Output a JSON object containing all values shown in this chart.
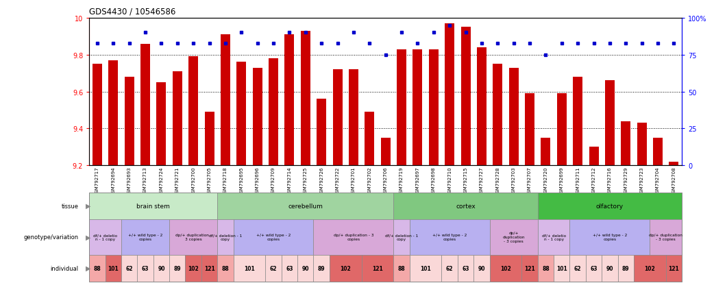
{
  "title": "GDS4430 / 10546586",
  "samples": [
    "GSM792717",
    "GSM792694",
    "GSM792693",
    "GSM792713",
    "GSM792724",
    "GSM792721",
    "GSM792700",
    "GSM792705",
    "GSM792718",
    "GSM792695",
    "GSM792696",
    "GSM792709",
    "GSM792714",
    "GSM792725",
    "GSM792726",
    "GSM792722",
    "GSM792701",
    "GSM792702",
    "GSM792706",
    "GSM792719",
    "GSM792697",
    "GSM792698",
    "GSM792710",
    "GSM792715",
    "GSM792727",
    "GSM792728",
    "GSM792703",
    "GSM792707",
    "GSM792720",
    "GSM792699",
    "GSM792711",
    "GSM792712",
    "GSM792716",
    "GSM792729",
    "GSM792723",
    "GSM792704",
    "GSM792708"
  ],
  "bar_values": [
    9.75,
    9.77,
    9.68,
    9.86,
    9.65,
    9.71,
    9.79,
    9.49,
    9.91,
    9.76,
    9.73,
    9.78,
    9.91,
    9.93,
    9.56,
    9.72,
    9.72,
    9.49,
    9.35,
    9.83,
    9.83,
    9.83,
    9.97,
    9.95,
    9.84,
    9.75,
    9.73,
    9.59,
    9.35,
    9.59,
    9.68,
    9.3,
    9.66,
    9.44,
    9.43,
    9.35,
    9.22
  ],
  "percentile_values": [
    83,
    83,
    83,
    90,
    83,
    83,
    83,
    83,
    83,
    90,
    83,
    83,
    90,
    90,
    83,
    83,
    90,
    83,
    75,
    90,
    83,
    90,
    95,
    90,
    83,
    83,
    83,
    83,
    75,
    83,
    83,
    83,
    83,
    83,
    83,
    83,
    83
  ],
  "ymin": 9.2,
  "ymax": 10.0,
  "yticks": [
    9.2,
    9.4,
    9.6,
    9.8,
    10.0
  ],
  "ytick_labels": [
    "9.2",
    "9.4",
    "9.6",
    "9.8",
    "10"
  ],
  "yticks_right": [
    0,
    25,
    50,
    75,
    100
  ],
  "ytick_labels_right": [
    "0",
    "25",
    "50",
    "75",
    "100%"
  ],
  "bar_color": "#cc0000",
  "dot_color": "#0000cc",
  "bg_color": "#ffffff",
  "tissues": [
    {
      "name": "brain stem",
      "start": 0,
      "end": 8,
      "color": "#c8eac8"
    },
    {
      "name": "cerebellum",
      "start": 8,
      "end": 19,
      "color": "#a0d4a0"
    },
    {
      "name": "cortex",
      "start": 19,
      "end": 28,
      "color": "#80c880"
    },
    {
      "name": "olfactory",
      "start": 28,
      "end": 37,
      "color": "#44bb44"
    }
  ],
  "genotypes": [
    {
      "name": "df/+ deletio\nn - 1 copy",
      "start": 0,
      "end": 2,
      "color": "#d8b8e8"
    },
    {
      "name": "+/+ wild type - 2\ncopies",
      "start": 2,
      "end": 5,
      "color": "#b8b0f0"
    },
    {
      "name": "dp/+ duplication -\n3 copies",
      "start": 5,
      "end": 8,
      "color": "#d8a8d8"
    },
    {
      "name": "df/+ deletion - 1\ncopy",
      "start": 8,
      "end": 9,
      "color": "#d8b8e8"
    },
    {
      "name": "+/+ wild type - 2\ncopies",
      "start": 9,
      "end": 14,
      "color": "#b8b0f0"
    },
    {
      "name": "dp/+ duplication - 3\ncopies",
      "start": 14,
      "end": 19,
      "color": "#d8a8d8"
    },
    {
      "name": "df/+ deletion - 1\ncopy",
      "start": 19,
      "end": 20,
      "color": "#d8b8e8"
    },
    {
      "name": "+/+ wild type - 2\ncopies",
      "start": 20,
      "end": 25,
      "color": "#b8b0f0"
    },
    {
      "name": "dp/+\nduplication\n- 3 copies",
      "start": 25,
      "end": 28,
      "color": "#d8a8d8"
    },
    {
      "name": "df/+ deletio\nn - 1 copy",
      "start": 28,
      "end": 30,
      "color": "#d8b8e8"
    },
    {
      "name": "+/+ wild type - 2\ncopies",
      "start": 30,
      "end": 35,
      "color": "#b8b0f0"
    },
    {
      "name": "dp/+ duplication\n- 3 copies",
      "start": 35,
      "end": 37,
      "color": "#d8a8d8"
    }
  ],
  "individuals": [
    {
      "label": "88",
      "start": 0,
      "end": 1,
      "color": "#f4a8a8"
    },
    {
      "label": "101",
      "start": 1,
      "end": 2,
      "color": "#e06868"
    },
    {
      "label": "62",
      "start": 2,
      "end": 3,
      "color": "#fad8d8"
    },
    {
      "label": "63",
      "start": 3,
      "end": 4,
      "color": "#fad8d8"
    },
    {
      "label": "90",
      "start": 4,
      "end": 5,
      "color": "#fad8d8"
    },
    {
      "label": "89",
      "start": 5,
      "end": 6,
      "color": "#fad8d8"
    },
    {
      "label": "102",
      "start": 6,
      "end": 7,
      "color": "#e06868"
    },
    {
      "label": "121",
      "start": 7,
      "end": 8,
      "color": "#e06868"
    },
    {
      "label": "88",
      "start": 8,
      "end": 9,
      "color": "#f4a8a8"
    },
    {
      "label": "101",
      "start": 9,
      "end": 11,
      "color": "#fad8d8"
    },
    {
      "label": "62",
      "start": 11,
      "end": 12,
      "color": "#fad8d8"
    },
    {
      "label": "63",
      "start": 12,
      "end": 13,
      "color": "#fad8d8"
    },
    {
      "label": "90",
      "start": 13,
      "end": 14,
      "color": "#fad8d8"
    },
    {
      "label": "89",
      "start": 14,
      "end": 15,
      "color": "#fad8d8"
    },
    {
      "label": "102",
      "start": 15,
      "end": 17,
      "color": "#e06868"
    },
    {
      "label": "121",
      "start": 17,
      "end": 19,
      "color": "#e06868"
    },
    {
      "label": "88",
      "start": 19,
      "end": 20,
      "color": "#f4a8a8"
    },
    {
      "label": "101",
      "start": 20,
      "end": 22,
      "color": "#fad8d8"
    },
    {
      "label": "62",
      "start": 22,
      "end": 23,
      "color": "#fad8d8"
    },
    {
      "label": "63",
      "start": 23,
      "end": 24,
      "color": "#fad8d8"
    },
    {
      "label": "90",
      "start": 24,
      "end": 25,
      "color": "#fad8d8"
    },
    {
      "label": "102",
      "start": 25,
      "end": 27,
      "color": "#e06868"
    },
    {
      "label": "121",
      "start": 27,
      "end": 28,
      "color": "#e06868"
    },
    {
      "label": "88",
      "start": 28,
      "end": 29,
      "color": "#f4a8a8"
    },
    {
      "label": "101",
      "start": 29,
      "end": 30,
      "color": "#fad8d8"
    },
    {
      "label": "62",
      "start": 30,
      "end": 31,
      "color": "#fad8d8"
    },
    {
      "label": "63",
      "start": 31,
      "end": 32,
      "color": "#fad8d8"
    },
    {
      "label": "90",
      "start": 32,
      "end": 33,
      "color": "#fad8d8"
    },
    {
      "label": "89",
      "start": 33,
      "end": 34,
      "color": "#fad8d8"
    },
    {
      "label": "102",
      "start": 34,
      "end": 36,
      "color": "#e06868"
    },
    {
      "label": "121",
      "start": 36,
      "end": 37,
      "color": "#e06868"
    }
  ]
}
